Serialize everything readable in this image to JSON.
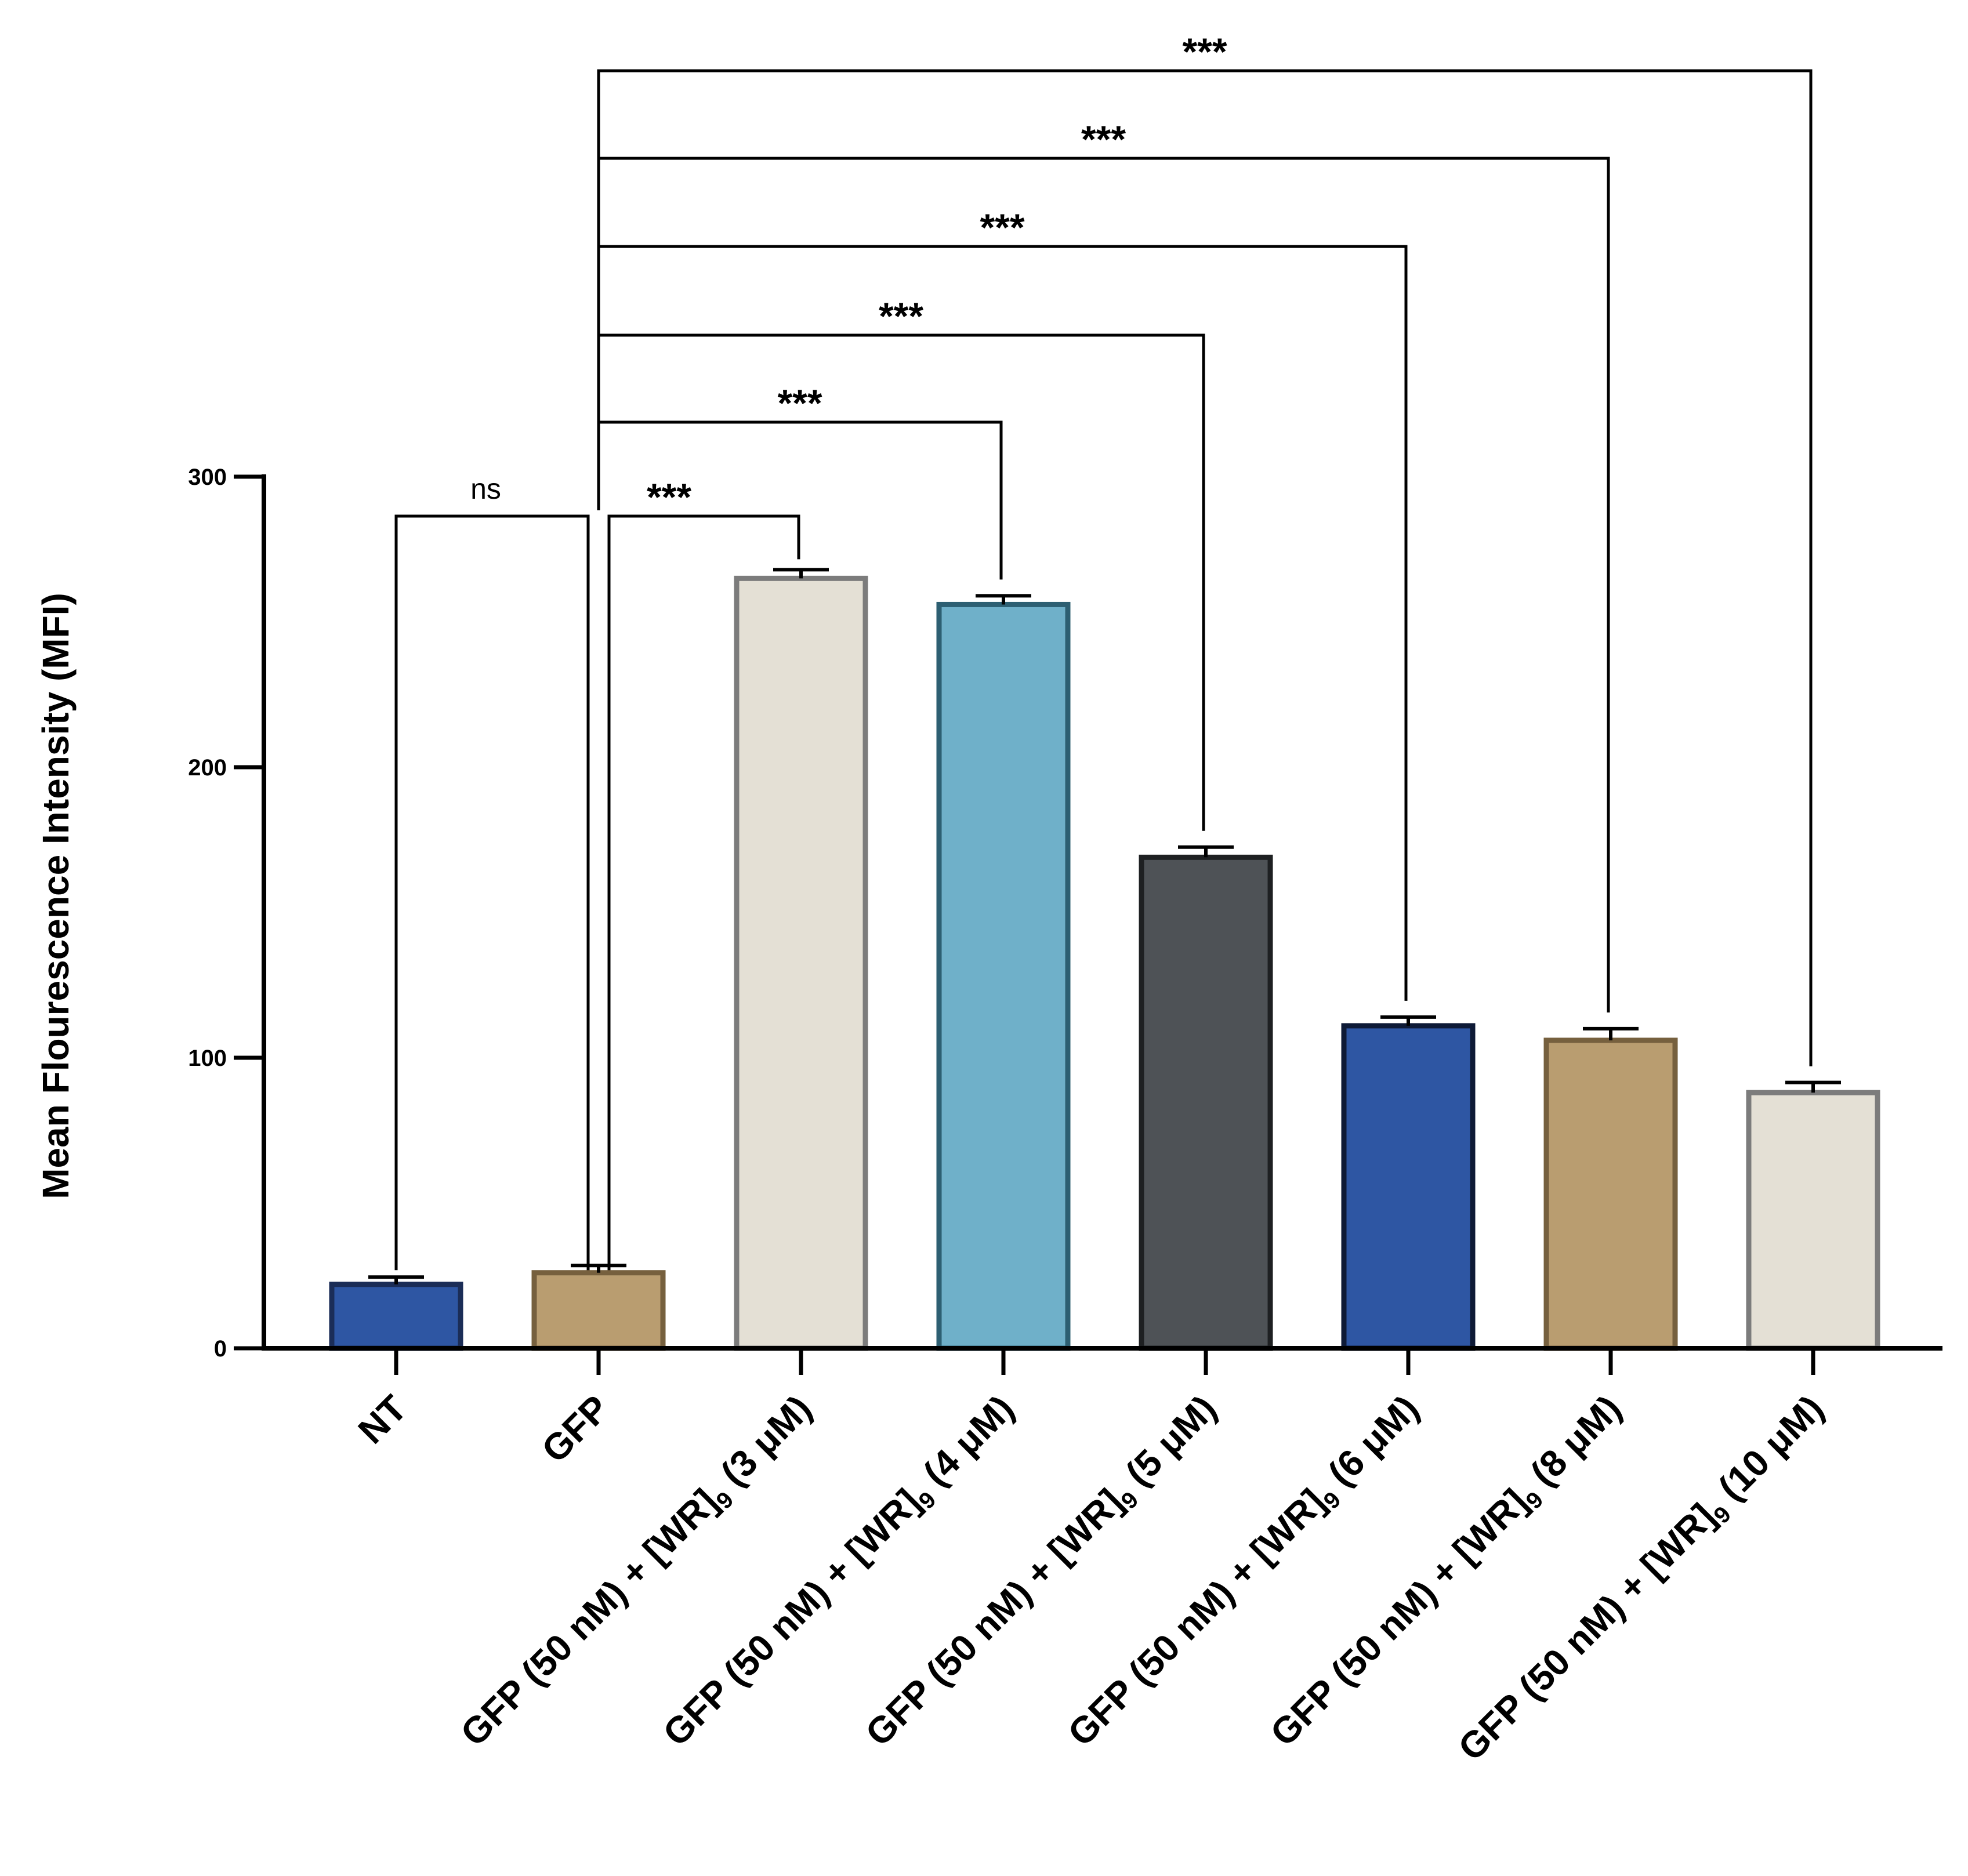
{
  "chart_data": {
    "type": "bar",
    "title": "",
    "xlabel": "",
    "ylabel": "Mean Flourescence Intensity (MFI)",
    "ylim": [
      0,
      300
    ],
    "yticks": [
      0,
      100,
      200,
      300
    ],
    "categories": [
      {
        "prefix": "",
        "main": "NT",
        "sub": "",
        "suffix": ""
      },
      {
        "prefix": "",
        "main": "GFP",
        "sub": "",
        "suffix": ""
      },
      {
        "prefix": "GFP (50 nM) + ",
        "main": "[WR]",
        "sub": "9",
        "suffix": " (3 μM)"
      },
      {
        "prefix": "GFP (50 nM) + ",
        "main": "[WR]",
        "sub": "9",
        "suffix": " (4 μM)"
      },
      {
        "prefix": "GFP (50 nM) + ",
        "main": "[WR]",
        "sub": "9",
        "suffix": " (5 μM)"
      },
      {
        "prefix": "GFP (50 nM) + ",
        "main": "[WR]",
        "sub": "9",
        "suffix": " (6 μM)"
      },
      {
        "prefix": "GFP (50 nM) + ",
        "main": "[WR]",
        "sub": "9",
        "suffix": " (8 μM)"
      },
      {
        "prefix": "GFP (50 nM) + ",
        "main": "[WR]",
        "sub": "9",
        "suffix": " (10 μM)"
      }
    ],
    "values": [
      22,
      26,
      265,
      256,
      169,
      111,
      106,
      88
    ],
    "errors": [
      2.5,
      2.5,
      3,
      3,
      3.5,
      3,
      4,
      3.5
    ],
    "colors": [
      {
        "fill": "#2e56a3",
        "stroke": "#1b2d57"
      },
      {
        "fill": "#b99d70",
        "stroke": "#76603e"
      },
      {
        "fill": "#e4e0d5",
        "stroke": "#7c7c7c"
      },
      {
        "fill": "#6fb0c9",
        "stroke": "#2d5f72"
      },
      {
        "fill": "#4e5256",
        "stroke": "#1e2022"
      },
      {
        "fill": "#2e56a3",
        "stroke": "#0e1a36"
      },
      {
        "fill": "#b99d70",
        "stroke": "#76603e"
      },
      {
        "fill": "#e4e0d5",
        "stroke": "#7c7c7c"
      }
    ],
    "comparisons": [
      {
        "from": 1,
        "to": 0,
        "label": "ns"
      },
      {
        "from": 1,
        "to": 2,
        "label": "***"
      },
      {
        "from": 1,
        "to": 3,
        "label": "***"
      },
      {
        "from": 1,
        "to": 4,
        "label": "***"
      },
      {
        "from": 1,
        "to": 5,
        "label": "***"
      },
      {
        "from": 1,
        "to": 6,
        "label": "***"
      },
      {
        "from": 1,
        "to": 7,
        "label": "***"
      }
    ]
  }
}
